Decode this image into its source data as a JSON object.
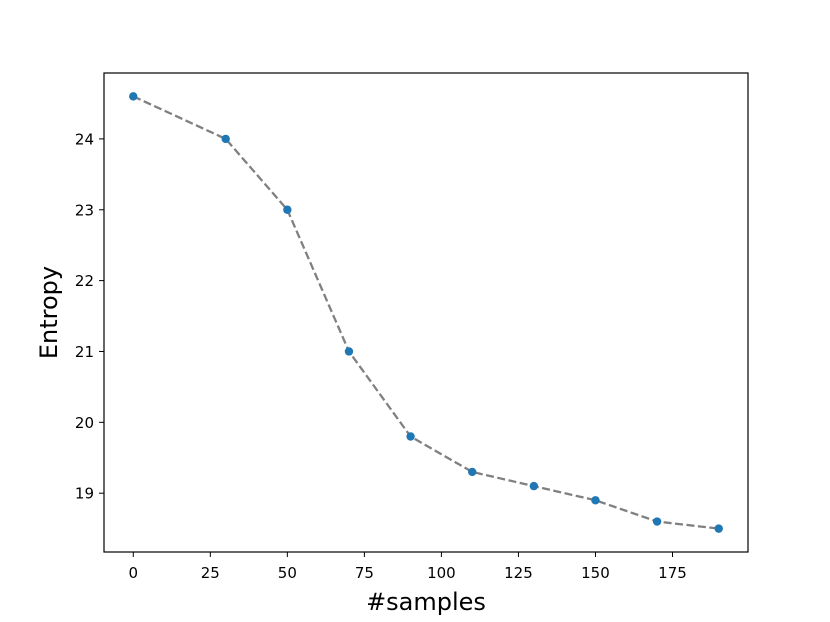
{
  "chart_data": {
    "type": "line",
    "title": "",
    "xlabel": "#samples",
    "ylabel": "Entropy",
    "xlim": [
      -9.5,
      199.5
    ],
    "ylim": [
      18.17,
      24.93
    ],
    "xticks": [
      0,
      25,
      50,
      75,
      100,
      125,
      150,
      175
    ],
    "yticks": [
      19,
      20,
      21,
      22,
      23,
      24
    ],
    "grid": false,
    "legend": "none",
    "series": [
      {
        "x": [
          0,
          30,
          50,
          70,
          90,
          110,
          130,
          150,
          170,
          190
        ],
        "y": [
          24.6,
          24.0,
          23.0,
          21.0,
          19.8,
          19.3,
          19.1,
          18.9,
          18.6,
          18.5
        ],
        "line_color": "#808080",
        "line_style": "dashed",
        "marker_color": "#1f77b4",
        "marker": "circle"
      }
    ]
  }
}
